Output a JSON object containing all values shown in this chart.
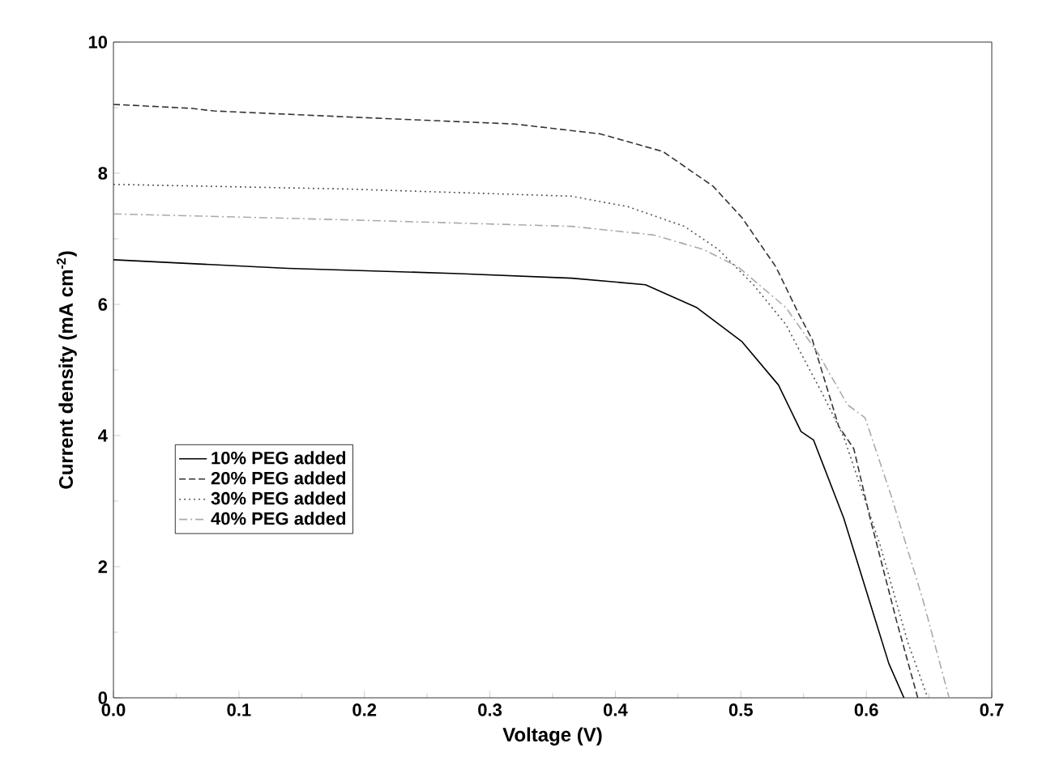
{
  "chart_data": {
    "type": "line",
    "xlabel": "Voltage (V)",
    "ylabel": "Current density (mA cm$^{-2}$)",
    "xlim": [
      0,
      0.7
    ],
    "ylim": [
      0,
      10
    ],
    "xticks": [
      {
        "value": 0,
        "label": "0.0"
      },
      0.1,
      0.2,
      0.3,
      0.4,
      0.5,
      0.6,
      0.7
    ],
    "yticks": [
      0,
      2,
      4,
      6,
      8,
      10
    ],
    "legend": "left",
    "grid": false,
    "marker": "none",
    "series": [
      {
        "name": "10% PEG added",
        "color": "#000000",
        "line_style": "solid",
        "x": [
          0,
          0.139,
          0.275,
          0.365,
          0.424,
          0.465,
          0.501,
          0.53,
          0.548,
          0.558,
          0.582,
          0.618,
          0.63
        ],
        "values": [
          6.68,
          6.55,
          6.47,
          6.4,
          6.3,
          5.95,
          5.43,
          4.77,
          4.06,
          3.93,
          2.74,
          0.52,
          0
        ]
      },
      {
        "name": "20% PEG added",
        "color": "#333333",
        "line_style": "dashed",
        "x": [
          0,
          0.062,
          0.08,
          0.185,
          0.32,
          0.388,
          0.438,
          0.478,
          0.501,
          0.528,
          0.546,
          0.557,
          0.578,
          0.59,
          0.603,
          0.624,
          0.641
        ],
        "values": [
          9.05,
          8.99,
          8.95,
          8.86,
          8.75,
          8.6,
          8.33,
          7.8,
          7.32,
          6.57,
          5.86,
          5.46,
          4.14,
          3.8,
          2.74,
          1.18,
          0
        ]
      },
      {
        "name": "30% PEG added",
        "color": "#555555",
        "line_style": "dotted",
        "x": [
          0,
          0.185,
          0.365,
          0.41,
          0.455,
          0.482,
          0.51,
          0.536,
          0.558,
          0.565,
          0.582,
          0.611,
          0.633,
          0.649
        ],
        "values": [
          7.83,
          7.76,
          7.65,
          7.49,
          7.19,
          6.84,
          6.3,
          5.69,
          4.89,
          4.64,
          3.98,
          2.33,
          0.85,
          0
        ]
      },
      {
        "name": "40% PEG added",
        "color": "#aaaaaa",
        "line_style": "dashdotted",
        "x": [
          0,
          0.185,
          0.365,
          0.43,
          0.47,
          0.498,
          0.536,
          0.562,
          0.585,
          0.599,
          0.62,
          0.645,
          0.666
        ],
        "values": [
          7.38,
          7.29,
          7.19,
          7.06,
          6.84,
          6.57,
          5.95,
          5.24,
          4.47,
          4.27,
          3.07,
          1.5,
          0
        ]
      }
    ]
  }
}
